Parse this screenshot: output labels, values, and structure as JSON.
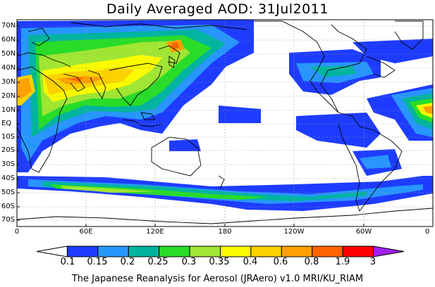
{
  "title": "Daily Averaged AOD: 31Jul2011",
  "footer": "The Japanese Reanalysis for Aerosol (JRAero) v1.0 MRI/KU_RIAM",
  "lat_labels": [
    "70N",
    "60N",
    "50N",
    "40N",
    "30N",
    "20N",
    "10N",
    "EQ",
    "10S",
    "20S",
    "30S",
    "40S",
    "50S",
    "60S",
    "70S"
  ],
  "lon_labels": [
    "0",
    "60E",
    "120E",
    "180",
    "120W",
    "60W",
    "0"
  ],
  "colorbar": {
    "labels": [
      "0.1",
      "0.15",
      "0.2",
      "0.25",
      "0.3",
      "0.35",
      "0.4",
      "0.6",
      "0.8",
      "1.9",
      "3"
    ],
    "colors": [
      "#ffffff",
      "#1e3cff",
      "#2896ff",
      "#00b4a0",
      "#28dc28",
      "#a0e632",
      "#fafa00",
      "#fad200",
      "#ffa000",
      "#ff6400",
      "#ff0000",
      "#a020f0"
    ]
  }
}
